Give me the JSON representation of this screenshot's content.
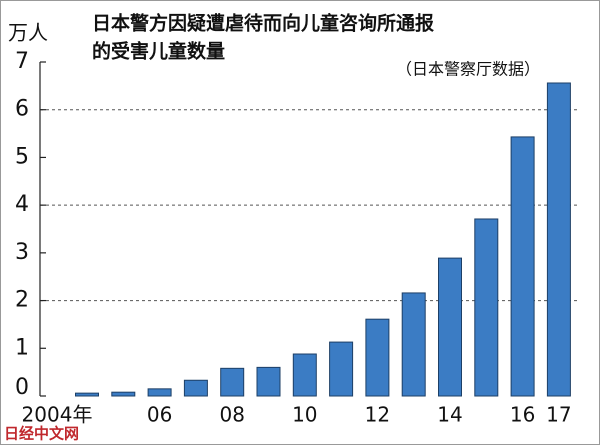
{
  "chart_data": {
    "type": "bar",
    "title_lines": [
      "日本警方因疑遭虐待而向儿童咨询所通报",
      "的受害儿童数量"
    ],
    "source": "（日本警察厅数据）",
    "y_unit": "万人",
    "watermark": "日经中文网",
    "categories": [
      "2004年",
      null,
      "06",
      null,
      "08",
      null,
      "10",
      null,
      "12",
      null,
      "14",
      null,
      "16",
      "17"
    ],
    "values": [
      0.06,
      0.08,
      0.15,
      0.33,
      0.58,
      0.6,
      0.88,
      1.13,
      1.61,
      2.16,
      2.89,
      3.71,
      5.43,
      6.56
    ],
    "color": "#3b7cc4",
    "ylim": [
      0,
      7
    ],
    "yticks": [
      0,
      1,
      2,
      3,
      4,
      5,
      6,
      7
    ],
    "gridlines": [
      2,
      4,
      6
    ]
  }
}
